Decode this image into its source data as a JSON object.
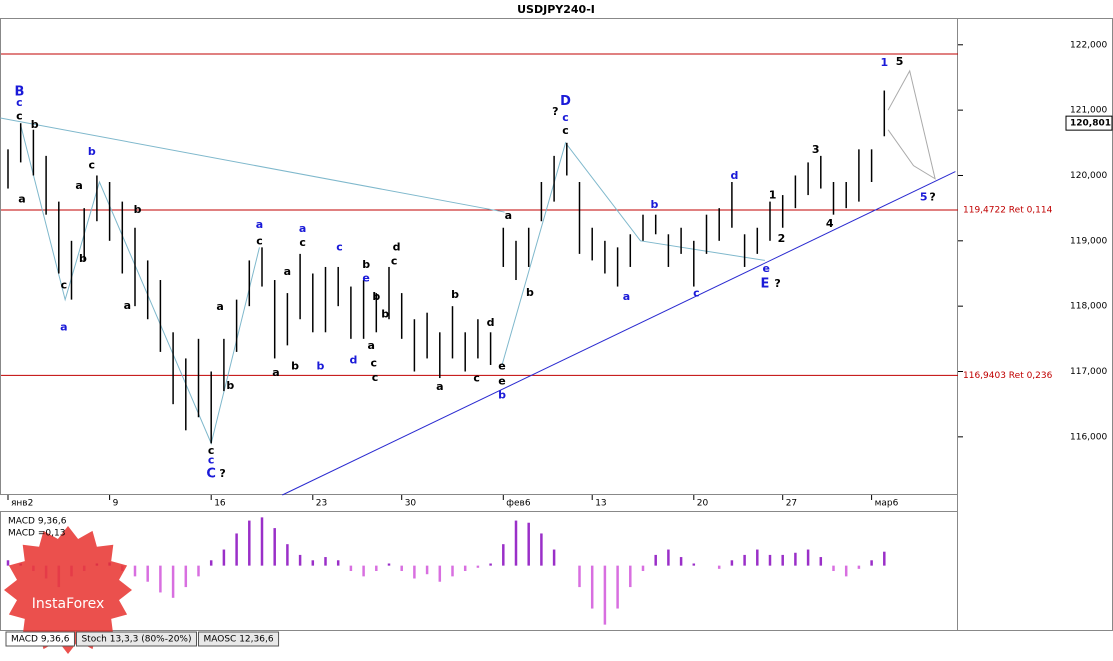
{
  "chart_data": {
    "type": "ohlc",
    "title": "USDJPY240-I",
    "categories": [
      "янв2",
      null,
      null,
      null,
      null,
      null,
      null,
      null,
      "9",
      null,
      null,
      null,
      null,
      null,
      null,
      null,
      "16",
      null,
      null,
      null,
      null,
      null,
      null,
      null,
      "23",
      null,
      null,
      null,
      null,
      null,
      null,
      "30",
      null,
      null,
      null,
      null,
      null,
      null,
      null,
      "фев6",
      null,
      null,
      null,
      null,
      null,
      null,
      "13",
      null,
      null,
      null,
      null,
      null,
      null,
      null,
      "20",
      null,
      null,
      null,
      null,
      null,
      null,
      "27",
      null,
      null,
      null,
      null,
      null,
      null,
      "мар6",
      null
    ],
    "series": [
      {
        "color": "#000000",
        "high": [
          120.4,
          120.8,
          120.7,
          120.3,
          119.6,
          119.0,
          119.5,
          120.0,
          119.9,
          119.6,
          119.2,
          118.7,
          118.4,
          117.6,
          117.2,
          117.5,
          117.0,
          117.5,
          118.1,
          118.7,
          118.9,
          118.4,
          118.2,
          118.8,
          118.5,
          118.6,
          118.6,
          118.3,
          118.4,
          118.2,
          118.6,
          118.2,
          117.8,
          117.9,
          117.6,
          118.0,
          117.6,
          117.8,
          117.6,
          119.2,
          119.0,
          119.2,
          119.9,
          120.3,
          120.5,
          119.9,
          119.2,
          119.0,
          118.9,
          119.1,
          119.4,
          119.4,
          119.1,
          119.2,
          119.0,
          119.4,
          119.5,
          119.9,
          119.1,
          119.2,
          119.6,
          119.7,
          120.0,
          120.2,
          120.3,
          119.9,
          119.9,
          120.4,
          120.4,
          121.3
        ],
        "low": [
          119.8,
          120.2,
          120.0,
          119.4,
          118.5,
          118.1,
          118.7,
          119.3,
          119.0,
          118.5,
          118.0,
          117.8,
          117.3,
          116.5,
          116.1,
          116.3,
          115.9,
          116.7,
          117.3,
          118.0,
          118.3,
          117.2,
          117.4,
          117.8,
          117.6,
          117.6,
          118.0,
          117.5,
          117.5,
          117.6,
          117.8,
          117.5,
          117.0,
          117.2,
          116.9,
          117.2,
          117.0,
          117.2,
          117.1,
          118.6,
          118.4,
          118.6,
          119.3,
          119.6,
          120.0,
          118.8,
          118.7,
          118.5,
          118.3,
          118.6,
          119.0,
          119.1,
          118.6,
          118.8,
          118.3,
          118.8,
          119.0,
          119.2,
          118.6,
          118.8,
          119.0,
          119.2,
          119.5,
          119.7,
          119.8,
          119.4,
          119.5,
          119.6,
          119.9,
          120.6
        ]
      }
    ],
    "ylim": [
      115.11,
      122.41
    ],
    "yticks": [
      {
        "value": 116,
        "label": "116,000"
      },
      {
        "value": 117,
        "label": "117,000"
      },
      {
        "value": 118,
        "label": "118,000"
      },
      {
        "value": 119,
        "label": "119,000"
      },
      {
        "value": 120,
        "label": "120,000"
      },
      {
        "value": 121,
        "label": "121,000"
      },
      {
        "value": 122,
        "label": "122,000"
      }
    ],
    "last_price": {
      "value": 120.801,
      "label": "120,801"
    },
    "hlines": [
      {
        "value": 121.86,
        "color": "#c00000"
      },
      {
        "value": 119.4722,
        "label": "119,4722 Ret 0,114",
        "color": "#c00000"
      },
      {
        "value": 116.9403,
        "label": "116,9403 Ret 0,236",
        "color": "#c00000"
      }
    ],
    "lines": [
      {
        "color": "#2a2ad0",
        "points": [
          [
            21.6,
            115.11
          ],
          [
            74.6,
            120.06
          ]
        ]
      },
      {
        "color": "#7fb8cc",
        "points": [
          [
            -0.6,
            120.88
          ],
          [
            39.1,
            119.44
          ]
        ]
      },
      {
        "color": "#7fb8cc",
        "points": [
          [
            1,
            120.77
          ],
          [
            4.5,
            118.1
          ],
          [
            7.2,
            119.9
          ],
          [
            16,
            115.9
          ],
          [
            19.8,
            118.9
          ]
        ]
      },
      {
        "color": "#7fb8cc",
        "points": [
          [
            38.9,
            117.1
          ],
          [
            43.9,
            120.5
          ],
          [
            49.8,
            119.0
          ],
          [
            59.6,
            118.7
          ]
        ]
      },
      {
        "color": "#aaaaaa",
        "points": [
          [
            69.3,
            121.0
          ],
          [
            71,
            121.6
          ],
          [
            73,
            119.95
          ],
          [
            71.3,
            120.15
          ],
          [
            69.3,
            120.7
          ]
        ]
      }
    ],
    "annotations": [
      {
        "text": "B",
        "x": 0.9,
        "y": 121.28,
        "color": "#1a1ad8"
      },
      {
        "text": "c",
        "x": 0.9,
        "y": 121.11,
        "color": "#1a1ad8"
      },
      {
        "text": "c",
        "x": 0.9,
        "y": 120.9,
        "color": "#000000"
      },
      {
        "text": "b",
        "x": 2.1,
        "y": 120.77,
        "color": "#000000"
      },
      {
        "text": "a",
        "x": 1.1,
        "y": 119.63,
        "color": "#000000"
      },
      {
        "text": "c",
        "x": 4.4,
        "y": 118.32,
        "color": "#000000"
      },
      {
        "text": "a",
        "x": 4.4,
        "y": 117.67,
        "color": "#1a1ad8"
      },
      {
        "text": "b",
        "x": 5.9,
        "y": 118.72,
        "color": "#000000"
      },
      {
        "text": "a",
        "x": 5.6,
        "y": 119.84,
        "color": "#000000"
      },
      {
        "text": "b",
        "x": 6.6,
        "y": 120.36,
        "color": "#1a1ad8"
      },
      {
        "text": "c",
        "x": 6.6,
        "y": 120.15,
        "color": "#000000"
      },
      {
        "text": "b",
        "x": 10.2,
        "y": 119.47,
        "color": "#000000"
      },
      {
        "text": "a",
        "x": 9.4,
        "y": 118.0,
        "color": "#000000"
      },
      {
        "text": "c",
        "x": 16,
        "y": 115.78,
        "color": "#000000"
      },
      {
        "text": "c",
        "x": 16,
        "y": 115.64,
        "color": "#1a1ad8"
      },
      {
        "text": "C",
        "x": 16,
        "y": 115.43,
        "color": "#1a1ad8"
      },
      {
        "text": "?",
        "x": 16.9,
        "y": 115.43,
        "color": "#000000"
      },
      {
        "text": "a",
        "x": 16.7,
        "y": 117.99,
        "color": "#000000"
      },
      {
        "text": "b",
        "x": 17.5,
        "y": 116.78,
        "color": "#000000"
      },
      {
        "text": "a",
        "x": 19.8,
        "y": 119.24,
        "color": "#1a1ad8"
      },
      {
        "text": "c",
        "x": 19.8,
        "y": 118.99,
        "color": "#000000"
      },
      {
        "text": "a",
        "x": 21.1,
        "y": 116.98,
        "color": "#000000"
      },
      {
        "text": "b",
        "x": 22.6,
        "y": 117.08,
        "color": "#000000"
      },
      {
        "text": "a",
        "x": 23.2,
        "y": 119.18,
        "color": "#1a1ad8"
      },
      {
        "text": "c",
        "x": 23.2,
        "y": 118.97,
        "color": "#000000"
      },
      {
        "text": "a",
        "x": 22,
        "y": 118.52,
        "color": "#000000"
      },
      {
        "text": "b",
        "x": 24.6,
        "y": 117.08,
        "color": "#1a1ad8"
      },
      {
        "text": "c",
        "x": 26.1,
        "y": 118.9,
        "color": "#1a1ad8"
      },
      {
        "text": "d",
        "x": 27.2,
        "y": 117.17,
        "color": "#1a1ad8"
      },
      {
        "text": "b",
        "x": 28.2,
        "y": 118.63,
        "color": "#000000"
      },
      {
        "text": "e",
        "x": 28.2,
        "y": 118.42,
        "color": "#1a1ad8"
      },
      {
        "text": "b",
        "x": 29,
        "y": 118.14,
        "color": "#000000"
      },
      {
        "text": "c",
        "x": 28.8,
        "y": 117.12,
        "color": "#000000"
      },
      {
        "text": "a",
        "x": 28.6,
        "y": 117.39,
        "color": "#000000"
      },
      {
        "text": "b",
        "x": 29.7,
        "y": 117.87,
        "color": "#000000"
      },
      {
        "text": "c",
        "x": 28.9,
        "y": 116.9,
        "color": "#000000"
      },
      {
        "text": "c",
        "x": 30.4,
        "y": 118.68,
        "color": "#000000"
      },
      {
        "text": "d",
        "x": 30.6,
        "y": 118.9,
        "color": "#000000"
      },
      {
        "text": "a",
        "x": 34,
        "y": 116.76,
        "color": "#000000"
      },
      {
        "text": "b",
        "x": 35.2,
        "y": 118.17,
        "color": "#000000"
      },
      {
        "text": "c",
        "x": 36.9,
        "y": 116.89,
        "color": "#000000"
      },
      {
        "text": "d",
        "x": 38,
        "y": 117.74,
        "color": "#000000"
      },
      {
        "text": "e",
        "x": 38.9,
        "y": 117.08,
        "color": "#000000"
      },
      {
        "text": "e",
        "x": 38.9,
        "y": 116.85,
        "color": "#000000"
      },
      {
        "text": "b",
        "x": 38.9,
        "y": 116.63,
        "color": "#1a1ad8"
      },
      {
        "text": "a",
        "x": 39.4,
        "y": 119.38,
        "color": "#000000"
      },
      {
        "text": "b",
        "x": 41.1,
        "y": 118.2,
        "color": "#000000"
      },
      {
        "text": "?",
        "x": 43.1,
        "y": 120.97,
        "color": "#000000"
      },
      {
        "text": "D",
        "x": 43.9,
        "y": 121.13,
        "color": "#1a1ad8"
      },
      {
        "text": "c",
        "x": 43.9,
        "y": 120.88,
        "color": "#1a1ad8"
      },
      {
        "text": "c",
        "x": 43.9,
        "y": 120.68,
        "color": "#000000"
      },
      {
        "text": "a",
        "x": 48.7,
        "y": 118.14,
        "color": "#1a1ad8"
      },
      {
        "text": "b",
        "x": 50.9,
        "y": 119.55,
        "color": "#1a1ad8"
      },
      {
        "text": "c",
        "x": 54.2,
        "y": 118.19,
        "color": "#1a1ad8"
      },
      {
        "text": "d",
        "x": 57.2,
        "y": 119.99,
        "color": "#1a1ad8"
      },
      {
        "text": "e",
        "x": 59.7,
        "y": 118.57,
        "color": "#1a1ad8"
      },
      {
        "text": "E",
        "x": 59.6,
        "y": 118.34,
        "color": "#1a1ad8"
      },
      {
        "text": "?",
        "x": 60.6,
        "y": 118.34,
        "color": "#000000"
      },
      {
        "text": "1",
        "x": 60.2,
        "y": 119.69,
        "color": "#000000"
      },
      {
        "text": "2",
        "x": 60.9,
        "y": 119.03,
        "color": "#000000"
      },
      {
        "text": "3",
        "x": 63.6,
        "y": 120.39,
        "color": "#000000"
      },
      {
        "text": "4",
        "x": 64.7,
        "y": 119.26,
        "color": "#000000"
      },
      {
        "text": "1",
        "x": 69,
        "y": 121.72,
        "color": "#1a1ad8"
      },
      {
        "text": "5",
        "x": 70.2,
        "y": 121.74,
        "color": "#000000"
      },
      {
        "text": "5",
        "x": 72.1,
        "y": 119.66,
        "color": "#1a1ad8"
      },
      {
        "text": "?",
        "x": 72.8,
        "y": 119.66,
        "color": "#000000"
      }
    ],
    "macd": {
      "title": "MACD 9,36,6",
      "value_label": "MACD =0,13",
      "ylim": [
        -0.6,
        0.5
      ],
      "pos_color": "#9a2fc8",
      "neg_color": "#d86fe0",
      "values": [
        0.05,
        0.02,
        -0.05,
        -0.12,
        -0.2,
        -0.1,
        -0.05,
        0.02,
        0.03,
        -0.05,
        -0.1,
        -0.15,
        -0.25,
        -0.3,
        -0.2,
        -0.1,
        0.05,
        0.15,
        0.3,
        0.42,
        0.45,
        0.35,
        0.2,
        0.1,
        0.05,
        0.08,
        0.05,
        -0.05,
        -0.1,
        -0.05,
        0.02,
        -0.05,
        -0.12,
        -0.08,
        -0.15,
        -0.1,
        -0.05,
        -0.02,
        0.02,
        0.2,
        0.42,
        0.4,
        0.3,
        0.15,
        0.0,
        -0.2,
        -0.4,
        -0.55,
        -0.4,
        -0.2,
        -0.05,
        0.1,
        0.15,
        0.08,
        0.02,
        0.0,
        -0.03,
        0.05,
        0.1,
        0.15,
        0.1,
        0.1,
        0.12,
        0.15,
        0.08,
        -0.05,
        -0.1,
        -0.03,
        0.05,
        0.13
      ]
    },
    "tabs": [
      "MACD 9,36,6",
      "Stoch 13,3,3 (80%-20%)",
      "MAOSC 12,36,6"
    ],
    "watermark": "InstaForex"
  }
}
